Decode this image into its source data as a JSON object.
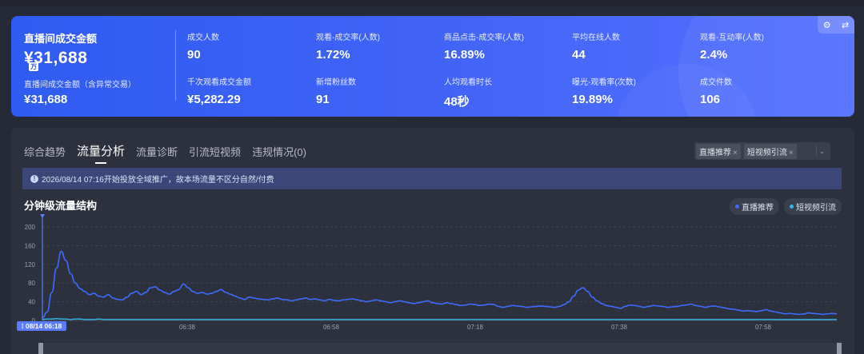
{
  "kpi": {
    "main_label": "直播间成交金额",
    "main_value": "¥31,688",
    "unit_badge": "万",
    "sub_label": "直播间成交金额（含异常交易）",
    "sub_value": "¥31,688",
    "metrics": [
      {
        "label": "成交人数",
        "value": "90"
      },
      {
        "label": "观看-成交率(人数)",
        "value": "1.72%"
      },
      {
        "label": "商品点击-成交率(人数)",
        "value": "16.89%"
      },
      {
        "label": "平均在线人数",
        "value": "44"
      },
      {
        "label": "观看-互动率(人数)",
        "value": "2.4%"
      },
      {
        "label": "千次观看成交金额",
        "value": "¥5,282.29"
      },
      {
        "label": "新增粉丝数",
        "value": "91"
      },
      {
        "label": "人均观看时长",
        "value": "48秒"
      },
      {
        "label": "曝光-观看率(次数)",
        "value": "19.89%"
      },
      {
        "label": "成交件数",
        "value": "106"
      }
    ],
    "corner_icons": [
      "gear-icon",
      "swap-icon"
    ]
  },
  "tabs": [
    {
      "label": "综合趋势",
      "active": false
    },
    {
      "label": "流量分析",
      "active": true
    },
    {
      "label": "流量诊断",
      "active": false
    },
    {
      "label": "引流短视频",
      "active": false
    },
    {
      "label": "违规情况(0)",
      "active": false
    }
  ],
  "filter": {
    "chips": [
      "直播推荐",
      "短视频引流"
    ]
  },
  "notice": {
    "text": "2026/08/14 07:16开始投放全域推广，故本场流量不区分自然/付费"
  },
  "chart_title": "分钟级流量结构",
  "chart_data": {
    "type": "line",
    "title": "分钟级流量结构",
    "xlabel": "",
    "ylabel": "",
    "ylim": [
      0,
      200
    ],
    "yticks": [
      "200",
      "160",
      "120",
      "80",
      "40",
      "0"
    ],
    "xticks": [
      "06:38",
      "06:58",
      "07:18",
      "07:38",
      "07:58"
    ],
    "start_label": "08/14 06:18",
    "legend_position": "top-right",
    "grid": true,
    "series": [
      {
        "name": "直播推荐",
        "color": "#3d6bff",
        "values": [
          5,
          18,
          60,
          112,
          148,
          128,
          100,
          80,
          68,
          62,
          55,
          58,
          52,
          50,
          55,
          48,
          45,
          44,
          50,
          58,
          62,
          55,
          60,
          70,
          72,
          65,
          60,
          56,
          62,
          66,
          78,
          70,
          62,
          58,
          60,
          56,
          58,
          62,
          66,
          60,
          56,
          52,
          48,
          45,
          50,
          48,
          46,
          45,
          44,
          46,
          48,
          45,
          44,
          42,
          44,
          46,
          48,
          45,
          46,
          44,
          42,
          45,
          43,
          42,
          44,
          45,
          46,
          44,
          42,
          40,
          42,
          44,
          42,
          40,
          38,
          40,
          42,
          40,
          38,
          36,
          38,
          40,
          42,
          38,
          36,
          35,
          38,
          36,
          34,
          32,
          33,
          35,
          34,
          32,
          33,
          35,
          34,
          30,
          28,
          30,
          32,
          31,
          30,
          28,
          29,
          30,
          31,
          30,
          29,
          28,
          30,
          34,
          40,
          52,
          65,
          70,
          62,
          50,
          42,
          36,
          32,
          30,
          28,
          26,
          30,
          33,
          32,
          30,
          28,
          30,
          32,
          31,
          30,
          28,
          29,
          30,
          32,
          33,
          35,
          32,
          30,
          28,
          30,
          31,
          29,
          27,
          25,
          24,
          22,
          20,
          21,
          20,
          19,
          21,
          23,
          20,
          18,
          16,
          14,
          15,
          14,
          13,
          14,
          16,
          15,
          14,
          13,
          14,
          15,
          14
        ]
      },
      {
        "name": "短视频引流",
        "color": "#2fb8ea",
        "values": [
          2,
          3,
          3,
          4,
          3,
          3,
          2,
          3,
          3,
          2,
          2,
          2,
          3,
          2,
          2,
          2,
          2,
          2,
          2,
          2,
          2,
          2,
          2,
          2,
          2,
          2,
          2,
          2,
          2,
          2,
          2,
          2,
          2,
          2,
          2,
          2,
          2,
          2,
          2,
          2,
          2,
          2,
          2,
          2,
          2,
          2,
          2,
          2,
          2,
          2,
          2,
          2,
          2,
          2,
          2,
          2,
          2,
          2,
          2,
          2,
          2,
          2,
          2,
          2,
          2,
          2,
          2,
          2,
          2,
          2,
          2,
          2,
          2,
          2,
          2,
          2,
          2,
          2,
          2,
          2,
          2,
          2,
          2,
          2,
          2,
          2,
          2,
          2,
          2,
          2,
          2,
          2,
          2,
          2,
          2,
          2,
          2,
          2,
          2,
          2,
          2,
          2,
          2,
          2,
          2,
          2,
          2,
          2,
          2,
          2,
          2,
          2,
          2,
          2,
          2,
          2,
          2,
          2,
          2,
          2,
          2,
          2,
          2,
          2,
          2,
          2,
          2,
          2,
          2,
          2,
          2,
          2,
          2,
          2,
          2,
          2,
          2,
          2,
          2,
          2,
          2,
          2,
          2,
          2,
          2,
          2,
          2,
          2,
          2,
          2,
          2,
          2,
          2,
          2,
          2,
          2,
          2,
          2,
          2,
          2,
          2,
          2,
          2,
          2,
          2,
          2,
          2,
          2,
          2,
          2
        ]
      }
    ]
  }
}
